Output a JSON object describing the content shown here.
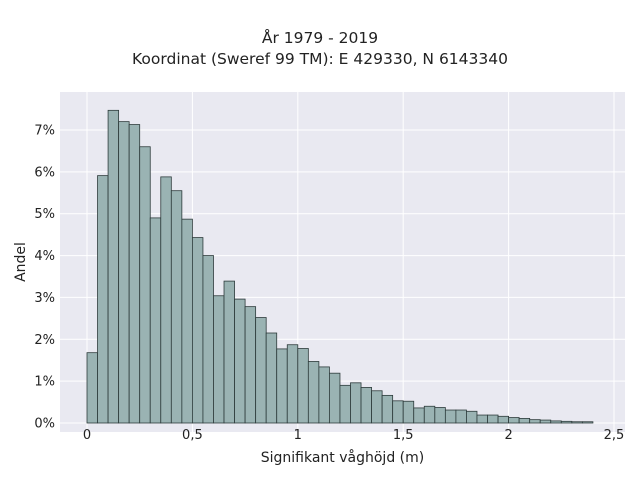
{
  "chart_data": {
    "type": "bar",
    "title": "År 1979 - 2019",
    "subtitle": "Koordinat (Sweref 99 TM): E 429330, N 6143340",
    "xlabel": "Signifikant våghöjd (m)",
    "ylabel": "Andel",
    "xlim": [
      -0.125,
      2.5
    ],
    "ylim": [
      0,
      0.079
    ],
    "x_ticks": [
      0,
      0.5,
      1,
      1.5,
      2,
      2.5
    ],
    "x_tick_labels": [
      "0",
      "0,5",
      "1",
      "1,5",
      "2",
      "2,5"
    ],
    "y_ticks": [
      0,
      0.01,
      0.02,
      0.03,
      0.04,
      0.05,
      0.06,
      0.07
    ],
    "y_tick_labels": [
      "0%",
      "1%",
      "2%",
      "3%",
      "4%",
      "5%",
      "6%",
      "7%"
    ],
    "grid": true,
    "bin_width": 0.05,
    "bin_starts": [
      0,
      0.05,
      0.1,
      0.15,
      0.2,
      0.25,
      0.3,
      0.35,
      0.4,
      0.45,
      0.5,
      0.55,
      0.6,
      0.65,
      0.7,
      0.75,
      0.8,
      0.85,
      0.9,
      0.95,
      1.0,
      1.05,
      1.1,
      1.15,
      1.2,
      1.25,
      1.3,
      1.35,
      1.4,
      1.45,
      1.5,
      1.55,
      1.6,
      1.65,
      1.7,
      1.75,
      1.8,
      1.85,
      1.9,
      1.95,
      2.0,
      2.05,
      2.1,
      2.15,
      2.2,
      2.25,
      2.3,
      2.35
    ],
    "values": [
      0.0168,
      0.0591,
      0.0747,
      0.072,
      0.0713,
      0.066,
      0.049,
      0.0588,
      0.0555,
      0.0487,
      0.0443,
      0.04,
      0.0304,
      0.0339,
      0.0296,
      0.0278,
      0.0252,
      0.0215,
      0.0177,
      0.0187,
      0.0178,
      0.0147,
      0.0134,
      0.0119,
      0.009,
      0.0096,
      0.0085,
      0.0077,
      0.0066,
      0.0053,
      0.0052,
      0.0036,
      0.004,
      0.0037,
      0.0031,
      0.0031,
      0.0028,
      0.0019,
      0.0019,
      0.0016,
      0.0013,
      0.0011,
      0.0008,
      0.0007,
      0.0005,
      0.0004,
      0.0003,
      0.0003
    ],
    "bar_color": "#9ab3b3",
    "bar_edge_color": "#2d3b3b",
    "plot_bg": "#e9e9f1"
  }
}
